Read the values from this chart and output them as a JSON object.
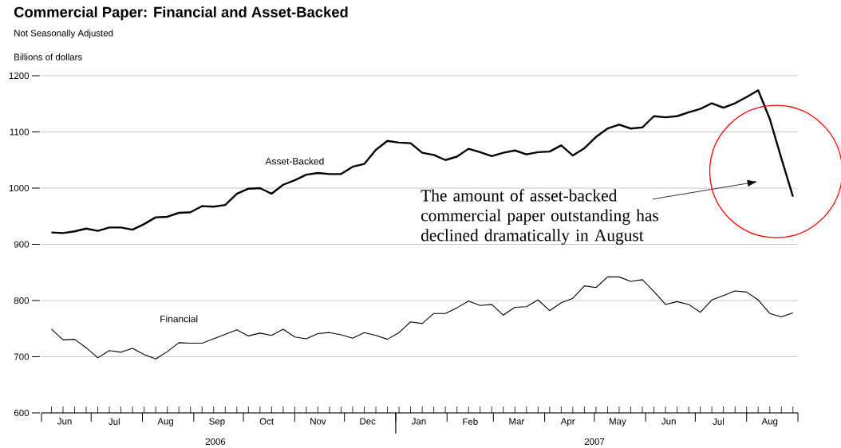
{
  "chart_data": {
    "type": "line",
    "title": "Commercial Paper: Financial and Asset-Backed",
    "subtitle": "Not Seasonally Adjusted",
    "ylabel": "Billions of dollars",
    "x": [
      "2006-06-07",
      "2006-06-14",
      "2006-06-21",
      "2006-06-28",
      "2006-07-05",
      "2006-07-12",
      "2006-07-19",
      "2006-07-26",
      "2006-08-02",
      "2006-08-09",
      "2006-08-16",
      "2006-08-23",
      "2006-08-30",
      "2006-09-06",
      "2006-09-13",
      "2006-09-20",
      "2006-09-27",
      "2006-10-04",
      "2006-10-11",
      "2006-10-18",
      "2006-10-25",
      "2006-11-01",
      "2006-11-08",
      "2006-11-15",
      "2006-11-22",
      "2006-11-29",
      "2006-12-06",
      "2006-12-13",
      "2006-12-20",
      "2006-12-27",
      "2007-01-03",
      "2007-01-10",
      "2007-01-17",
      "2007-01-24",
      "2007-01-31",
      "2007-02-07",
      "2007-02-14",
      "2007-02-21",
      "2007-02-28",
      "2007-03-07",
      "2007-03-14",
      "2007-03-21",
      "2007-03-28",
      "2007-04-04",
      "2007-04-11",
      "2007-04-18",
      "2007-04-25",
      "2007-05-02",
      "2007-05-09",
      "2007-05-16",
      "2007-05-23",
      "2007-05-30",
      "2007-06-06",
      "2007-06-13",
      "2007-06-20",
      "2007-06-27",
      "2007-07-04",
      "2007-07-11",
      "2007-07-18",
      "2007-07-25",
      "2007-08-01",
      "2007-08-08",
      "2007-08-15",
      "2007-08-22",
      "2007-08-29"
    ],
    "series": [
      {
        "name": "Asset-Backed",
        "color": "#000000",
        "values": [
          921,
          920,
          923,
          928,
          924,
          930,
          930,
          926,
          936,
          948,
          949,
          956,
          957,
          968,
          967,
          970,
          990,
          999,
          1000,
          990,
          1006,
          1014,
          1024,
          1027,
          1025,
          1025,
          1038,
          1043,
          1068,
          1084,
          1081,
          1080,
          1063,
          1059,
          1050,
          1056,
          1070,
          1064,
          1057,
          1063,
          1067,
          1060,
          1064,
          1065,
          1076,
          1058,
          1071,
          1091,
          1106,
          1113,
          1106,
          1108,
          1128,
          1126,
          1128,
          1135,
          1141,
          1151,
          1143,
          1151,
          1162,
          1174,
          1123,
          1053,
          985
        ]
      },
      {
        "name": "Financial",
        "color": "#000000",
        "values": [
          749,
          730,
          731,
          716,
          698,
          711,
          708,
          715,
          704,
          696,
          709,
          725,
          724,
          724,
          732,
          740,
          748,
          737,
          742,
          738,
          749,
          735,
          732,
          741,
          743,
          739,
          733,
          743,
          738,
          731,
          743,
          762,
          759,
          777,
          777,
          787,
          799,
          791,
          793,
          774,
          788,
          789,
          801,
          782,
          796,
          804,
          826,
          823,
          842,
          842,
          834,
          837,
          816,
          793,
          798,
          793,
          779,
          801,
          809,
          817,
          815,
          801,
          777,
          771,
          778
        ]
      }
    ],
    "xlim": [
      "2006-06-01",
      "2007-09-01"
    ],
    "xticks": [
      {
        "value": "2006-06-01",
        "label": null
      },
      {
        "value": "2006-06-15",
        "label": "Jun"
      },
      {
        "value": "2006-07-01",
        "label": null
      },
      {
        "value": "2006-07-15",
        "label": "Jul"
      },
      {
        "value": "2006-08-01",
        "label": null
      },
      {
        "value": "2006-08-15",
        "label": "Aug"
      },
      {
        "value": "2006-09-01",
        "label": null
      },
      {
        "value": "2006-09-15",
        "label": "Sep"
      },
      {
        "value": "2006-10-01",
        "label": null
      },
      {
        "value": "2006-10-15",
        "label": "Oct"
      },
      {
        "value": "2006-11-01",
        "label": null
      },
      {
        "value": "2006-11-15",
        "label": "Nov"
      },
      {
        "value": "2006-12-01",
        "label": null
      },
      {
        "value": "2006-12-15",
        "label": "Dec"
      },
      {
        "value": "2007-01-01",
        "label": null
      },
      {
        "value": "2007-01-15",
        "label": "Jan"
      },
      {
        "value": "2007-02-01",
        "label": null
      },
      {
        "value": "2007-02-15",
        "label": "Feb"
      },
      {
        "value": "2007-03-01",
        "label": null
      },
      {
        "value": "2007-03-15",
        "label": "Mar"
      },
      {
        "value": "2007-04-01",
        "label": null
      },
      {
        "value": "2007-04-15",
        "label": "Apr"
      },
      {
        "value": "2007-05-01",
        "label": null
      },
      {
        "value": "2007-05-15",
        "label": "May"
      },
      {
        "value": "2007-06-01",
        "label": null
      },
      {
        "value": "2007-06-15",
        "label": "Jun"
      },
      {
        "value": "2007-07-01",
        "label": null
      },
      {
        "value": "2007-07-15",
        "label": "Jul"
      },
      {
        "value": "2007-08-01",
        "label": null
      },
      {
        "value": "2007-08-15",
        "label": "Aug"
      },
      {
        "value": "2007-09-01",
        "label": null
      }
    ],
    "ylim": [
      600,
      1200
    ],
    "yticks": [
      600,
      700,
      800,
      900,
      1000,
      1100,
      1200
    ],
    "annotations": [
      "The amount of asset-backed commercial paper outstanding has declined dramatically in August",
      "2006",
      "2007"
    ],
    "grid": "y",
    "legend": false,
    "marker": "none",
    "line_style": "solid"
  }
}
